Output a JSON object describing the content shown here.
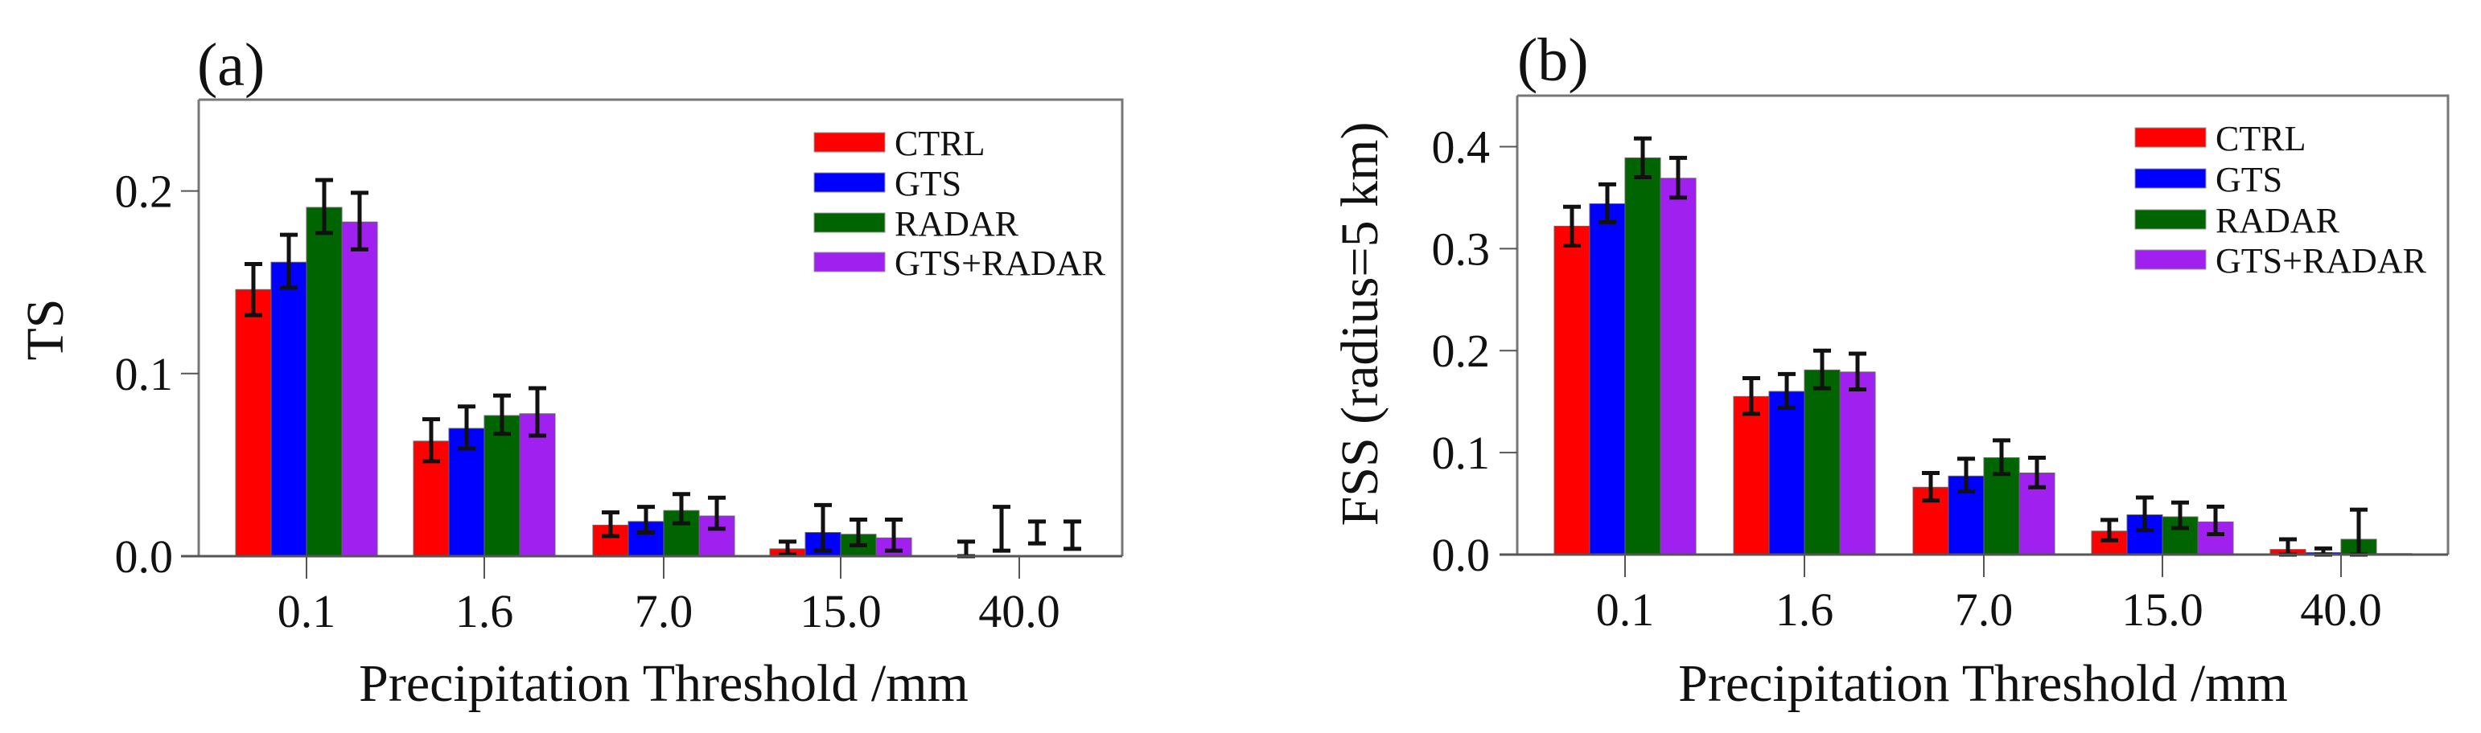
{
  "colors": {
    "CTRL": "#ff0000",
    "GTS": "#0000ff",
    "RADAR": "#006400",
    "GTS+RADAR": "#a020f0"
  },
  "chart_data": [
    {
      "type": "bar",
      "panel_label": "(a)",
      "title": "",
      "xlabel": "Precipitation Threshold /mm",
      "ylabel": "TS",
      "categories": [
        "0.1",
        "1.6",
        "7.0",
        "15.0",
        "40.0"
      ],
      "ylim": [
        0,
        0.25
      ],
      "yticks": [
        "0.0",
        "0.1",
        "0.2"
      ],
      "legend_position": "top-right",
      "grid": false,
      "series": [
        {
          "name": "CTRL",
          "values": [
            0.146,
            0.063,
            0.017,
            0.004,
            0.0
          ],
          "err_low": [
            0.132,
            0.052,
            0.011,
            0.001,
            0.0
          ],
          "err_high": [
            0.16,
            0.075,
            0.024,
            0.008,
            0.008
          ]
        },
        {
          "name": "GTS",
          "values": [
            0.161,
            0.07,
            0.019,
            0.013,
            0.0
          ],
          "err_low": [
            0.147,
            0.059,
            0.013,
            0.003,
            0.003
          ],
          "err_high": [
            0.176,
            0.082,
            0.027,
            0.028,
            0.027
          ]
        },
        {
          "name": "RADAR",
          "values": [
            0.191,
            0.077,
            0.025,
            0.012,
            0.0
          ],
          "err_low": [
            0.177,
            0.067,
            0.018,
            0.006,
            0.007
          ],
          "err_high": [
            0.206,
            0.088,
            0.034,
            0.02,
            0.019
          ]
        },
        {
          "name": "GTS+RADAR",
          "values": [
            0.183,
            0.078,
            0.022,
            0.01,
            0.0
          ],
          "err_low": [
            0.168,
            0.066,
            0.015,
            0.003,
            0.004
          ],
          "err_high": [
            0.199,
            0.092,
            0.032,
            0.02,
            0.019
          ]
        }
      ]
    },
    {
      "type": "bar",
      "panel_label": "(b)",
      "title": "",
      "xlabel": "Precipitation Threshold /mm",
      "ylabel": "FSS (radius=5 km)",
      "categories": [
        "0.1",
        "1.6",
        "7.0",
        "15.0",
        "40.0"
      ],
      "ylim": [
        0,
        0.45
      ],
      "yticks": [
        "0.0",
        "0.1",
        "0.2",
        "0.3",
        "0.4"
      ],
      "legend_position": "top-right",
      "grid": false,
      "series": [
        {
          "name": "CTRL",
          "values": [
            0.322,
            0.155,
            0.066,
            0.023,
            0.005
          ],
          "err_low": [
            0.303,
            0.138,
            0.053,
            0.014,
            0.0
          ],
          "err_high": [
            0.341,
            0.173,
            0.08,
            0.034,
            0.015
          ]
        },
        {
          "name": "GTS",
          "values": [
            0.344,
            0.16,
            0.077,
            0.039,
            0.002
          ],
          "err_low": [
            0.326,
            0.144,
            0.062,
            0.024,
            0.0
          ],
          "err_high": [
            0.363,
            0.177,
            0.094,
            0.056,
            0.006
          ]
        },
        {
          "name": "RADAR",
          "values": [
            0.389,
            0.181,
            0.095,
            0.037,
            0.015
          ],
          "err_low": [
            0.37,
            0.163,
            0.079,
            0.026,
            0.0
          ],
          "err_high": [
            0.408,
            0.2,
            0.112,
            0.051,
            0.044
          ]
        },
        {
          "name": "GTS+RADAR",
          "values": [
            0.369,
            0.179,
            0.08,
            0.032,
            0.001
          ],
          "err_low": [
            0.35,
            0.162,
            0.066,
            0.02,
            0.001
          ],
          "err_high": [
            0.389,
            0.197,
            0.095,
            0.047,
            0.001
          ]
        }
      ]
    }
  ]
}
